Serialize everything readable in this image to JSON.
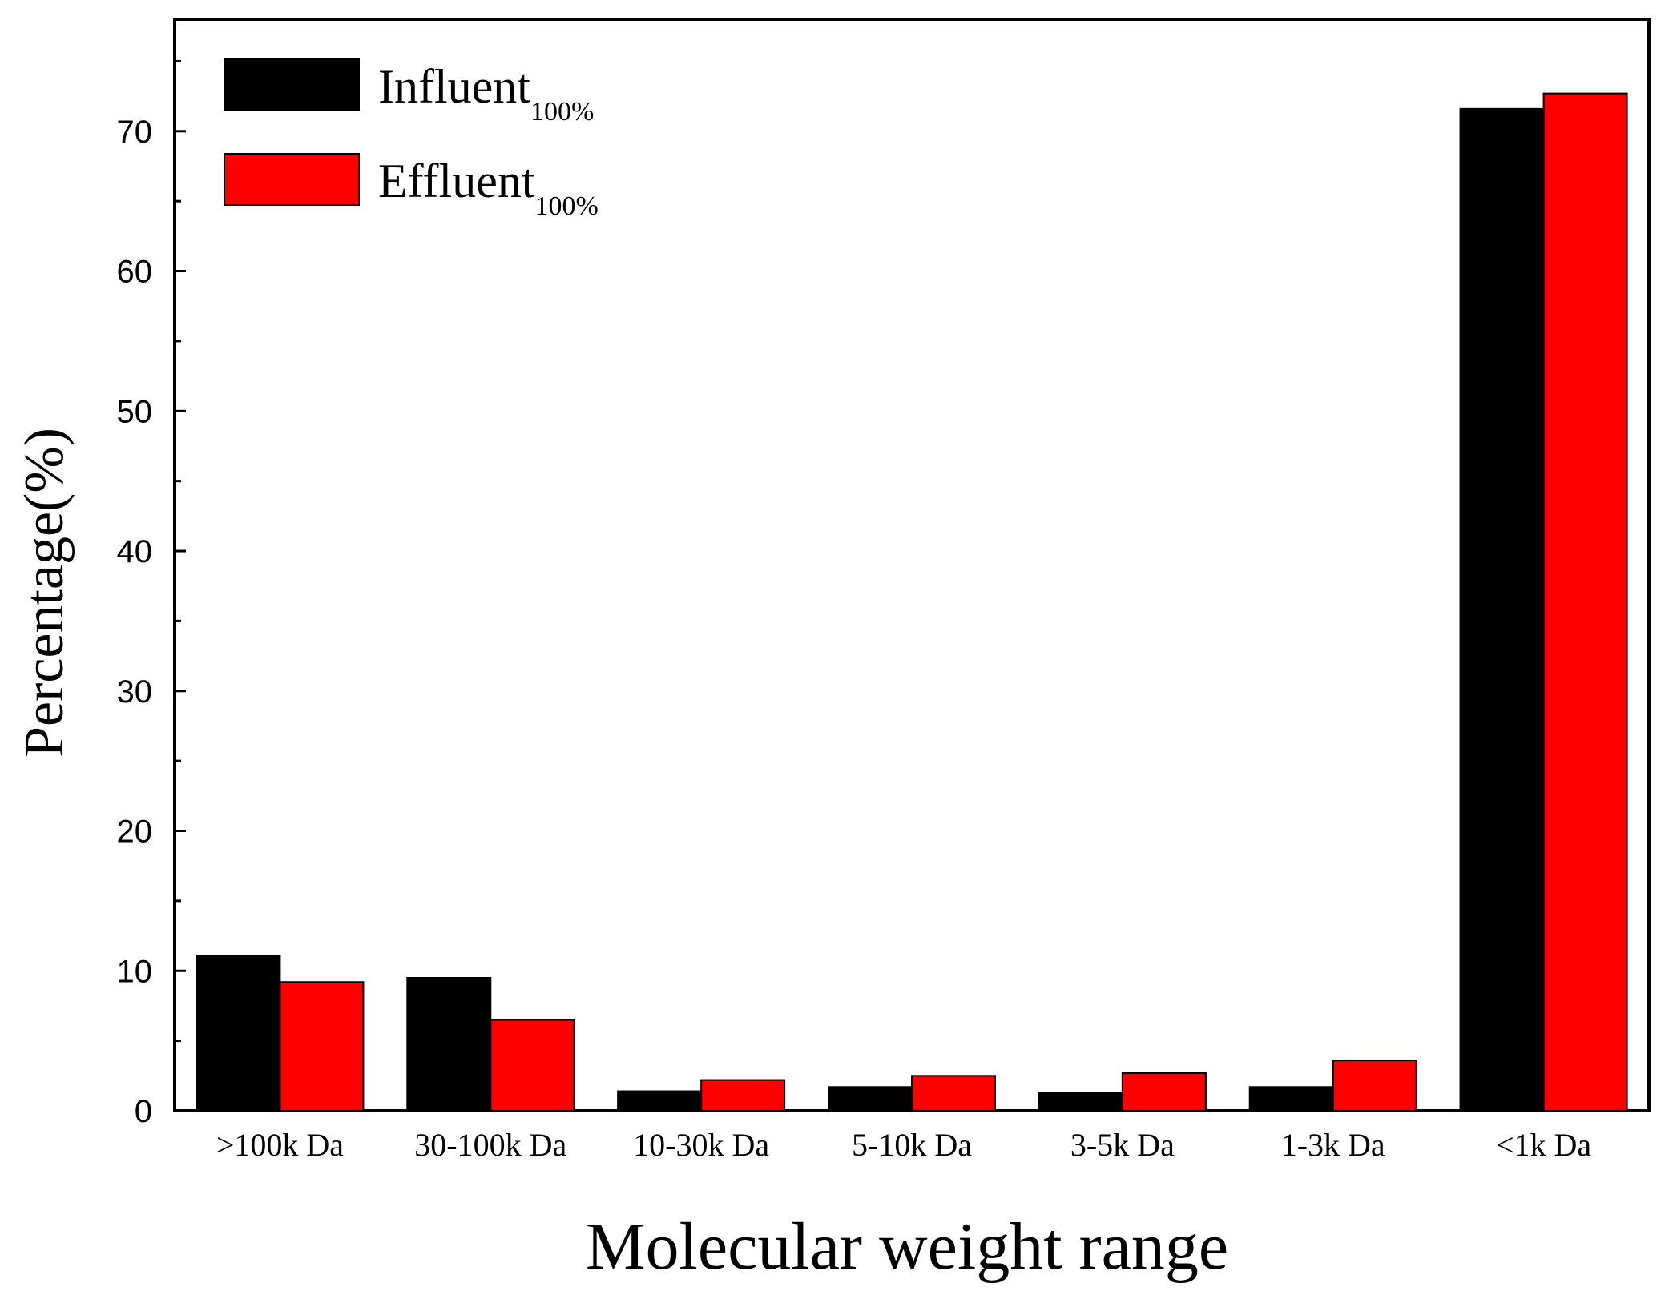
{
  "chart_data": {
    "type": "bar",
    "title": "",
    "xlabel": "Molecular weight range",
    "ylabel": "Percentage(%)",
    "ylim": [
      0,
      78
    ],
    "yticks": [
      0,
      10,
      20,
      30,
      40,
      50,
      60,
      70
    ],
    "yticks_text": [
      "0",
      "10",
      "20",
      "30",
      "40",
      "50",
      "60",
      "70"
    ],
    "categories": [
      ">100k Da",
      "30-100k Da",
      "10-30k Da",
      "5-10k Da",
      "3-5k Da",
      "1-3k Da",
      "<1k Da"
    ],
    "series": [
      {
        "name": "Influent",
        "subscript": "100%",
        "color": "#000000",
        "values": [
          11.1,
          9.5,
          1.4,
          1.7,
          1.3,
          1.7,
          71.6
        ]
      },
      {
        "name": "Effluent",
        "subscript": "100%",
        "color": "#ff0000",
        "values": [
          9.2,
          6.5,
          2.2,
          2.5,
          2.7,
          3.6,
          72.7
        ]
      }
    ],
    "legend_position": "top-left",
    "grid": false
  }
}
